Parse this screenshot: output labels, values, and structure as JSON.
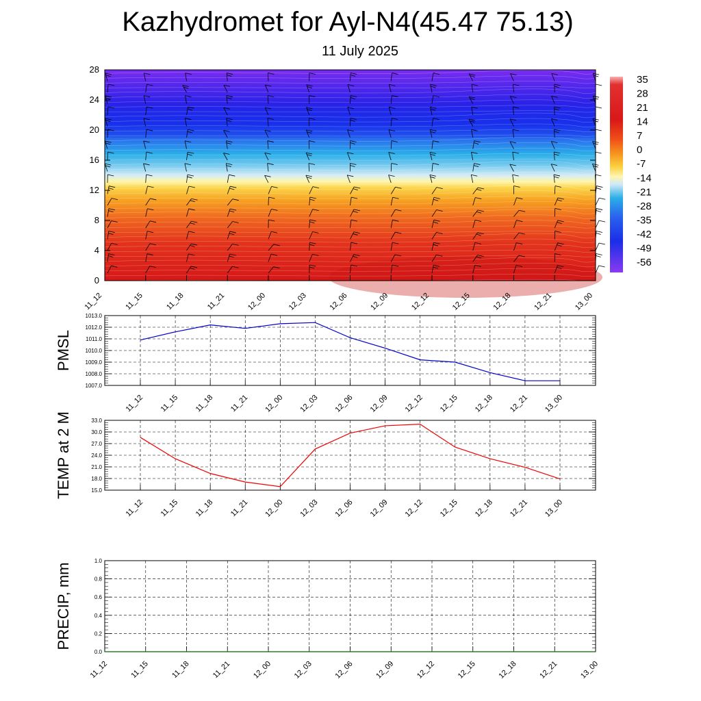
{
  "header": {
    "title": "Kazhydromet for Ayl-N4(45.47 75.13)",
    "subtitle": "11 July 2025"
  },
  "chart_data": [
    {
      "type": "heatmap",
      "description_values": "time-height cross section of temperature with wind barbs",
      "x_categories": [
        "11_12",
        "11_15",
        "11_18",
        "11_21",
        "12_00",
        "12_03",
        "12_06",
        "12_09",
        "12_12",
        "12_15",
        "12_18",
        "12_21",
        "13_00"
      ],
      "y_ticks": [
        0,
        4,
        8,
        12,
        16,
        20,
        24,
        28
      ],
      "ylim": [
        0,
        28
      ],
      "colorbar_labels": [
        "35",
        "28",
        "21",
        "14",
        "7",
        "0",
        "-7",
        "-14",
        "-21",
        "-28",
        "-35",
        "-42",
        "-49",
        "-56"
      ],
      "colors": {
        "hot": "#d41414",
        "orange": "#f59a1e",
        "yellow": "#fff7a8",
        "light_blue": "#bfe3f5",
        "cyan": "#2aaee8",
        "blue": "#1030e8",
        "purple": "#7a2cf0"
      }
    },
    {
      "type": "line",
      "ylabel": "PMSL",
      "x_categories": [
        "11_12",
        "11_15",
        "11_18",
        "11_21",
        "12_00",
        "12_03",
        "12_06",
        "12_09",
        "12_12",
        "12_15",
        "12_18",
        "12_21",
        "13_00"
      ],
      "y_ticks": [
        "1007.0",
        "1008.0",
        "1009.0",
        "1010.0",
        "1011.0",
        "1012.0",
        "1013.0"
      ],
      "ylim": [
        1007,
        1013
      ],
      "series": [
        {
          "color": "#0000cc",
          "values": [
            1010.9,
            1011.6,
            1012.2,
            1011.9,
            1012.3,
            1012.4,
            1011.1,
            1010.2,
            1009.2,
            1009.0,
            1008.1,
            1007.4,
            1007.4
          ]
        }
      ]
    },
    {
      "type": "line",
      "ylabel": "TEMP at 2 M",
      "x_categories": [
        "11_12",
        "11_15",
        "11_18",
        "11_21",
        "12_00",
        "12_03",
        "12_06",
        "12_09",
        "12_12",
        "12_15",
        "12_18",
        "12_21",
        "13_00"
      ],
      "y_ticks": [
        "15.0",
        "18.0",
        "21.0",
        "24.0",
        "27.0",
        "30.0",
        "33.0"
      ],
      "ylim": [
        15,
        33
      ],
      "series": [
        {
          "color": "#ee0000",
          "values": [
            28.6,
            23.1,
            19.3,
            17.1,
            15.9,
            25.6,
            29.7,
            31.6,
            32.0,
            26.1,
            23.1,
            20.9,
            17.9
          ]
        }
      ]
    },
    {
      "type": "line",
      "ylabel": "PRECIP, mm",
      "x_categories": [
        "11_12",
        "11_15",
        "11_18",
        "11_21",
        "12_00",
        "12_03",
        "12_06",
        "12_09",
        "12_12",
        "12_15",
        "12_18",
        "12_21",
        "13_00"
      ],
      "y_ticks": [
        "0.0",
        "0.2",
        "0.4",
        "0.6",
        "0.8",
        "1.0"
      ],
      "ylim": [
        0,
        1
      ],
      "series": [
        {
          "color": "#006600",
          "values": [
            0,
            0,
            0,
            0,
            0,
            0,
            0,
            0,
            0,
            0,
            0,
            0,
            0
          ]
        }
      ]
    }
  ]
}
